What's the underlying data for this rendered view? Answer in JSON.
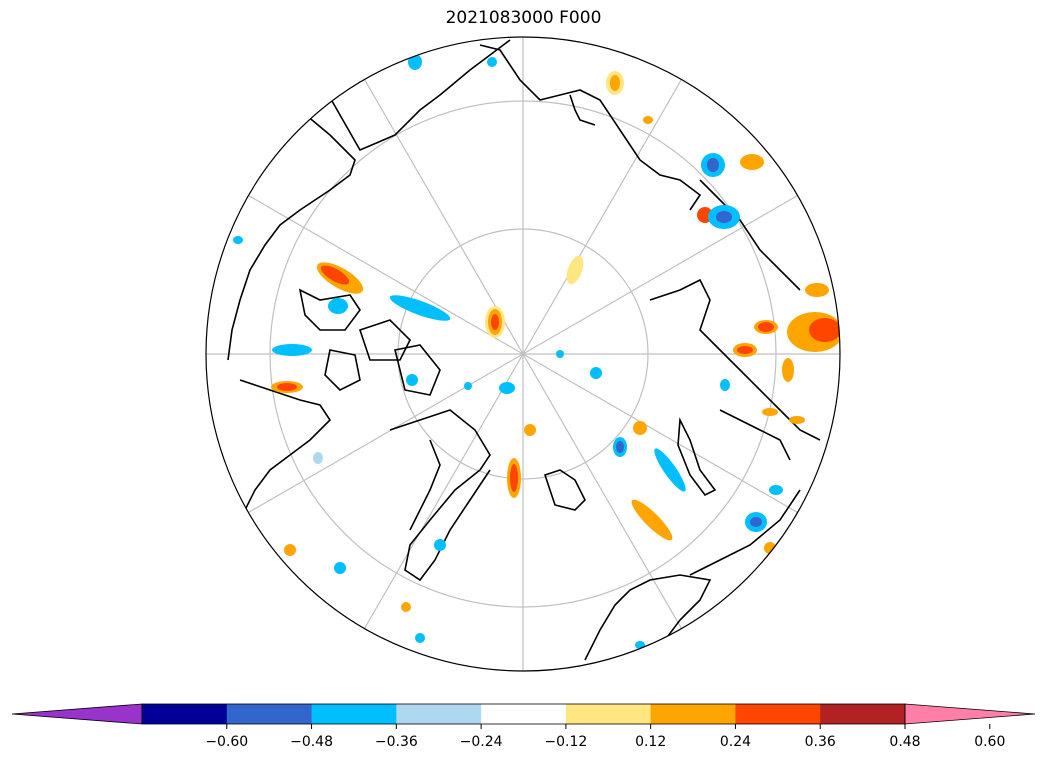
{
  "title": "2021083000 F000",
  "projection": "north-polar-stereographic",
  "graticule": {
    "latitude_circles": true,
    "meridians": true,
    "color": "#c0c0c0"
  },
  "colorbar": {
    "extend": "both",
    "bins": [
      {
        "color": "#9933cc",
        "range": "below -0.60"
      },
      {
        "color": "#000099",
        "range": "-0.60 to -0.48"
      },
      {
        "color": "#3366cc",
        "range": "-0.48 to -0.36"
      },
      {
        "color": "#00bfff",
        "range": "-0.36 to -0.24"
      },
      {
        "color": "#add8f0",
        "range": "-0.24 to -0.12"
      },
      {
        "color": "#ffffff",
        "range": "-0.12 to 0.12"
      },
      {
        "color": "#ffe680",
        "range": "0.12 to 0.24"
      },
      {
        "color": "#ffa500",
        "range": "0.24 to 0.36"
      },
      {
        "color": "#ff4500",
        "range": "0.36 to 0.48"
      },
      {
        "color": "#b22222",
        "range": "0.48 to 0.60"
      },
      {
        "color": "#ff7fa8",
        "range": "above 0.60"
      }
    ],
    "tick_labels": [
      "−0.60",
      "−0.48",
      "−0.36",
      "−0.24",
      "−0.12",
      "0.12",
      "0.24",
      "0.36",
      "0.48",
      "0.60"
    ]
  }
}
